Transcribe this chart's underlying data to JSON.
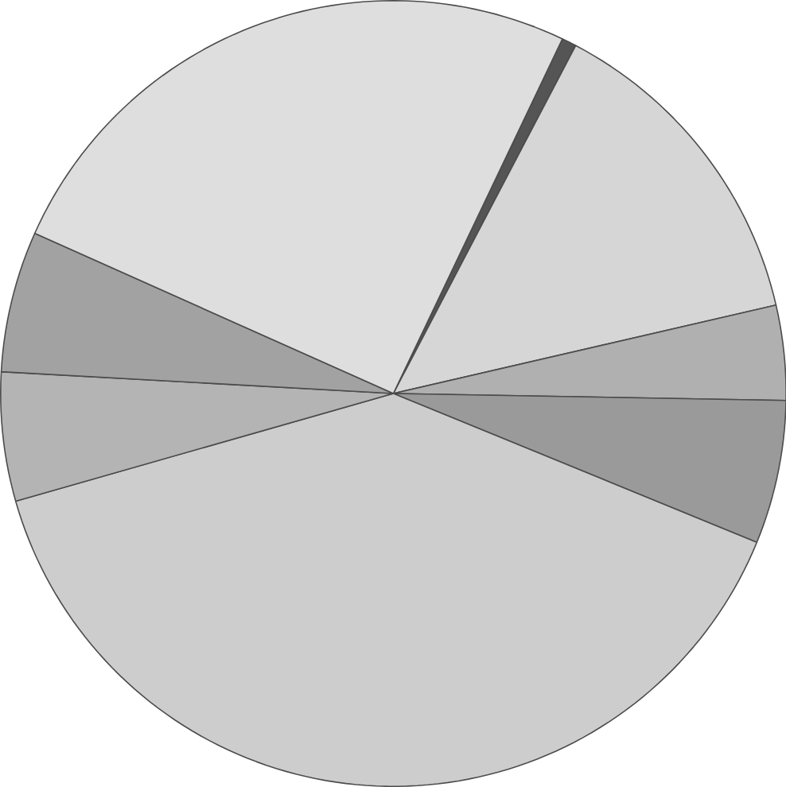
{
  "chart_data": {
    "type": "pie",
    "categories": [
      null,
      null,
      null,
      null,
      null,
      null,
      null,
      null
    ],
    "values": [
      0.6,
      13.7,
      3.9,
      5.9,
      39.4,
      5.3,
      5.8,
      25.4
    ],
    "colors": [
      "#555555",
      "#d6d6d6",
      "#b0b0b0",
      "#9a9a9a",
      "#cdcdcd",
      "#b4b4b4",
      "#a2a2a2",
      "#dedede"
    ]
  }
}
